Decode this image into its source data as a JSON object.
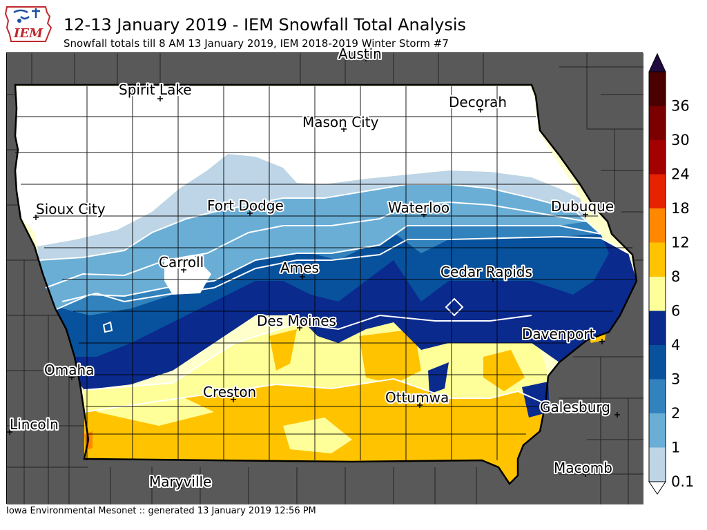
{
  "header": {
    "logo_text": "IEM",
    "title": "12-13 January 2019 - IEM Snowfall Total Analysis",
    "subtitle": "Snowfall totals till 8 AM 13 January 2019, IEM 2018-2019 Winter Storm #7"
  },
  "footer": {
    "text": "Iowa Environmental Mesonet :: generated 13 January 2019 12:56 PM"
  },
  "legend": {
    "ticks": [
      "0.1",
      "1",
      "2",
      "3",
      "4",
      "6",
      "8",
      "12",
      "18",
      "24",
      "30",
      "36"
    ],
    "colors": [
      "#bdd5e6",
      "#6aaed6",
      "#3282bd",
      "#08519c",
      "#0a2a8e",
      "#ffff99",
      "#ffc300",
      "#ff8800",
      "#e62200",
      "#a30000",
      "#7a0000",
      "#4a0000"
    ],
    "top_cap_color": "#220a40"
  },
  "map": {
    "background_color": "#595959",
    "iowa_base_color": "#ffffcc",
    "cities": [
      {
        "name": "Austin"
      },
      {
        "name": "Spirit Lake"
      },
      {
        "name": "Decorah"
      },
      {
        "name": "Mason City"
      },
      {
        "name": "Sioux City"
      },
      {
        "name": "Fort Dodge"
      },
      {
        "name": "Waterloo"
      },
      {
        "name": "Dubuque"
      },
      {
        "name": "Carroll"
      },
      {
        "name": "Ames"
      },
      {
        "name": "Cedar Rapids"
      },
      {
        "name": "Des Moines"
      },
      {
        "name": "Davenport"
      },
      {
        "name": "Omaha"
      },
      {
        "name": "Creston"
      },
      {
        "name": "Ottumwa"
      },
      {
        "name": "Galesburg"
      },
      {
        "name": "Lincoln"
      },
      {
        "name": "Macomb"
      },
      {
        "name": "Maryville"
      }
    ]
  }
}
